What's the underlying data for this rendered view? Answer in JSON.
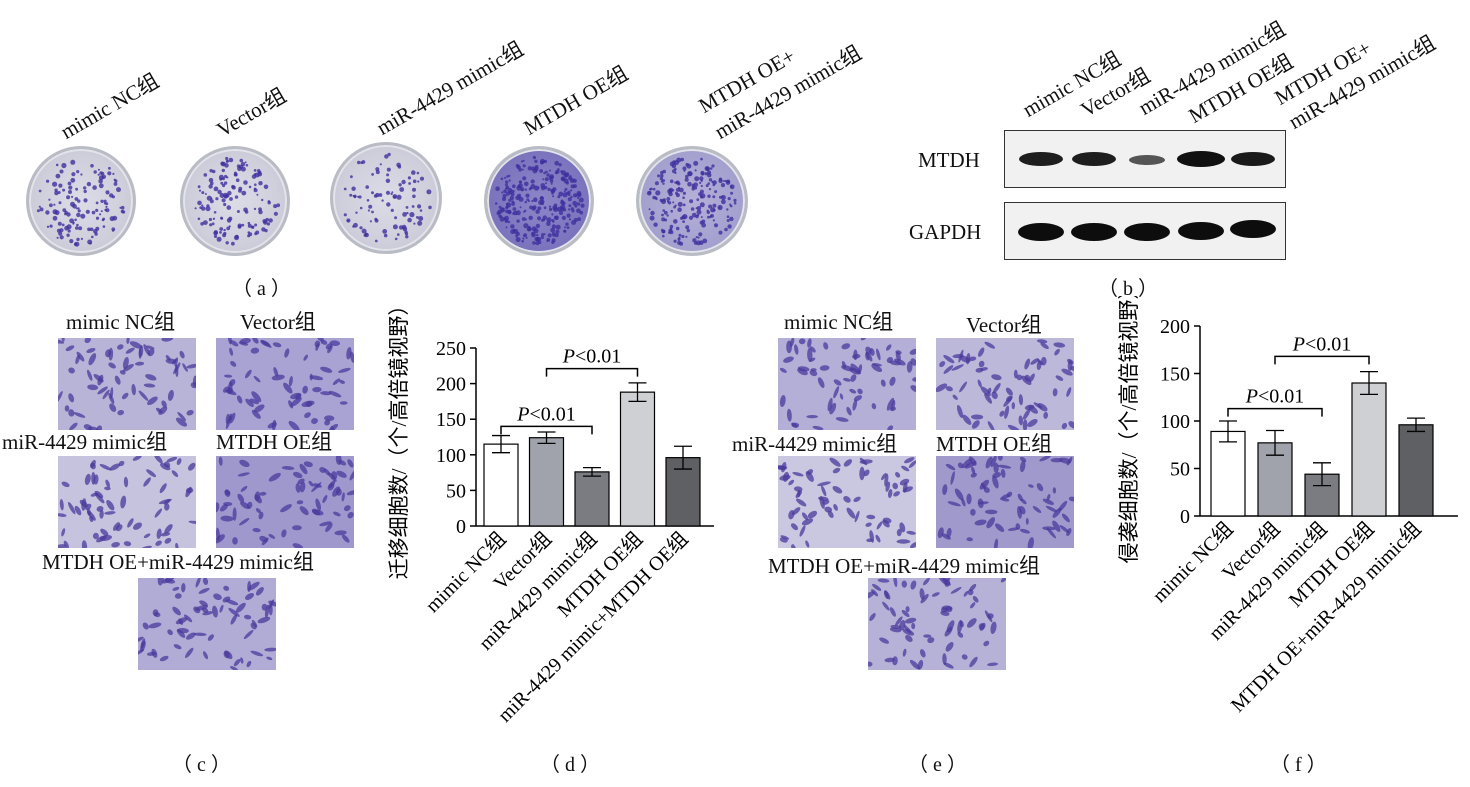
{
  "panel_a": {
    "caption": "（ a ）",
    "groups": [
      "mimic NC组",
      "Vector组",
      "miR-4429 mimic组",
      "MTDH OE组",
      "MTDH OE+",
      "miR-4429 mimic组"
    ]
  },
  "panel_b": {
    "caption": "（ b ）",
    "lanes": [
      "mimic NC组",
      "Vector组",
      "miR-4429 mimic组",
      "MTDH OE组",
      "MTDH OE+",
      "miR-4429 mimic组"
    ],
    "rows": [
      "MTDH",
      "GAPDH"
    ]
  },
  "panel_c": {
    "caption": "（ c ）",
    "labels": [
      "mimic NC组",
      "Vector组",
      "miR-4429 mimic组",
      "MTDH OE组",
      "MTDH OE+miR-4429 mimic组"
    ]
  },
  "panel_e": {
    "caption": "（ e ）",
    "labels": [
      "mimic NC组",
      "Vector组",
      "miR-4429 mimic组",
      "MTDH OE组",
      "MTDH OE+miR-4429 mimic组"
    ]
  },
  "chart_data": [
    {
      "panel": "d",
      "caption": "（ d ）",
      "type": "bar",
      "ylabel": "迁移细胞数/（个/高倍镜视野）",
      "ylim": [
        0,
        250
      ],
      "yticks": [
        0,
        50,
        100,
        150,
        200,
        250
      ],
      "categories": [
        "mimic NC组",
        "Vector组",
        "miR-4429 mimic组",
        "MTDH OE组",
        "miR-4429 mimic+MTDH OE组"
      ],
      "values": [
        115,
        124,
        76,
        188,
        96
      ],
      "errors": [
        12,
        8,
        6,
        13,
        16
      ],
      "colors": [
        "#ffffff",
        "#a0a3ab",
        "#7a7c82",
        "#cfd0d4",
        "#5e6064"
      ],
      "annotations": [
        {
          "text": "P<0.01",
          "p": "P",
          "rest": "<0.01",
          "from": 0,
          "to": 2,
          "level": 140
        },
        {
          "text": "P<0.01",
          "p": "P",
          "rest": "<0.01",
          "from": 1,
          "to": 3,
          "level": 221
        }
      ]
    },
    {
      "panel": "f",
      "caption": "（ f ）",
      "type": "bar",
      "ylabel": "侵袭细胞数/（个/高倍镜视野）",
      "ylim": [
        0,
        200
      ],
      "yticks": [
        0,
        50,
        100,
        150,
        200
      ],
      "categories": [
        "mimic NC组",
        "Vector组",
        "miR-4429 mimic组",
        "MTDH OE组",
        "MTDH OE+miR-4429 mimic组"
      ],
      "values": [
        89,
        77,
        44,
        140,
        96
      ],
      "errors": [
        11,
        13,
        12,
        12,
        7
      ],
      "colors": [
        "#ffffff",
        "#a0a3ab",
        "#7a7c82",
        "#cfd0d4",
        "#5e6064"
      ],
      "annotations": [
        {
          "text": "P<0.01",
          "p": "P",
          "rest": "<0.01",
          "from": 0,
          "to": 2,
          "level": 113
        },
        {
          "text": "P<0.01",
          "p": "P",
          "rest": "<0.01",
          "from": 1,
          "to": 3,
          "level": 168
        }
      ]
    }
  ]
}
